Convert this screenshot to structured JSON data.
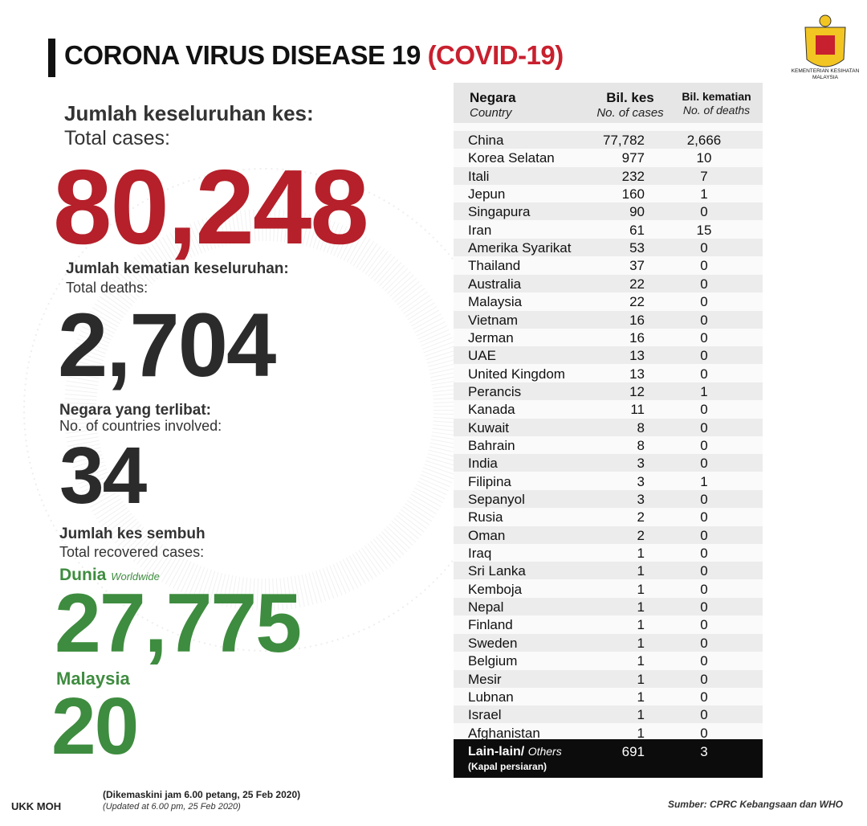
{
  "header": {
    "title": "CORONA VIRUS DISEASE 19",
    "title_highlight": "(COVID-19)",
    "logo_text": [
      "KEMENTERIAN KESIHATAN",
      "MALAYSIA"
    ]
  },
  "stats": {
    "total_cases": {
      "label_ms": "Jumlah keseluruhan kes:",
      "label_en": "Total cases:",
      "value": "80,248"
    },
    "total_deaths": {
      "label_ms": "Jumlah kematian keseluruhan:",
      "label_en": "Total deaths:",
      "value": "2,704"
    },
    "countries": {
      "label_ms": "Negara yang terlibat:",
      "label_en": "No. of countries involved:",
      "value": "34"
    },
    "recovered": {
      "label_ms": "Jumlah kes sembuh",
      "label_en": "Total recovered cases:",
      "world": {
        "label": "Dunia",
        "sublabel": "Worldwide",
        "value": "27,775"
      },
      "malaysia": {
        "label": "Malaysia",
        "value": "20"
      }
    }
  },
  "table": {
    "columns": [
      {
        "label": "Negara",
        "sublabel": "Country"
      },
      {
        "label": "Bil. kes",
        "sublabel": "No. of cases"
      },
      {
        "label": "Bil. kematian",
        "sublabel": "No. of deaths"
      }
    ],
    "rows": [
      [
        "China",
        "77,782",
        "2,666"
      ],
      [
        "Korea Selatan",
        "977",
        "10"
      ],
      [
        "Itali",
        "232",
        "7"
      ],
      [
        "Jepun",
        "160",
        "1"
      ],
      [
        "Singapura",
        "90",
        "0"
      ],
      [
        "Iran",
        "61",
        "15"
      ],
      [
        "Amerika Syarikat",
        "53",
        "0"
      ],
      [
        "Thailand",
        "37",
        "0"
      ],
      [
        "Australia",
        "22",
        "0"
      ],
      [
        "Malaysia",
        "22",
        "0"
      ],
      [
        "Vietnam",
        "16",
        "0"
      ],
      [
        "Jerman",
        "16",
        "0"
      ],
      [
        "UAE",
        "13",
        "0"
      ],
      [
        "United Kingdom",
        "13",
        "0"
      ],
      [
        "Perancis",
        "12",
        "1"
      ],
      [
        "Kanada",
        "11",
        "0"
      ],
      [
        "Kuwait",
        "8",
        "0"
      ],
      [
        "Bahrain",
        "8",
        "0"
      ],
      [
        "India",
        "3",
        "0"
      ],
      [
        "Filipina",
        "3",
        "1"
      ],
      [
        "Sepanyol",
        "3",
        "0"
      ],
      [
        "Rusia",
        "2",
        "0"
      ],
      [
        "Oman",
        "2",
        "0"
      ],
      [
        "Iraq",
        "1",
        "0"
      ],
      [
        "Sri Lanka",
        "1",
        "0"
      ],
      [
        "Kemboja",
        "1",
        "0"
      ],
      [
        "Nepal",
        "1",
        "0"
      ],
      [
        "Finland",
        "1",
        "0"
      ],
      [
        "Sweden",
        "1",
        "0"
      ],
      [
        "Belgium",
        "1",
        "0"
      ],
      [
        "Mesir",
        "1",
        "0"
      ],
      [
        "Lubnan",
        "1",
        "0"
      ],
      [
        "Israel",
        "1",
        "0"
      ],
      [
        "Afghanistan",
        "1",
        "0"
      ]
    ],
    "others": {
      "label_ms": "Lain-lain/",
      "label_en": "Others",
      "note": "(Kapal persiaran)",
      "cases": "691",
      "deaths": "3"
    }
  },
  "footer": {
    "credit": "UKK MOH",
    "updated_ms": "(Dikemaskini  jam 6.00 petang, 25 Feb 2020)",
    "updated_en": "(Updated at 6.00 pm, 25 Feb 2020)",
    "source": "Sumber: CPRC Kebangsaan dan WHO"
  }
}
